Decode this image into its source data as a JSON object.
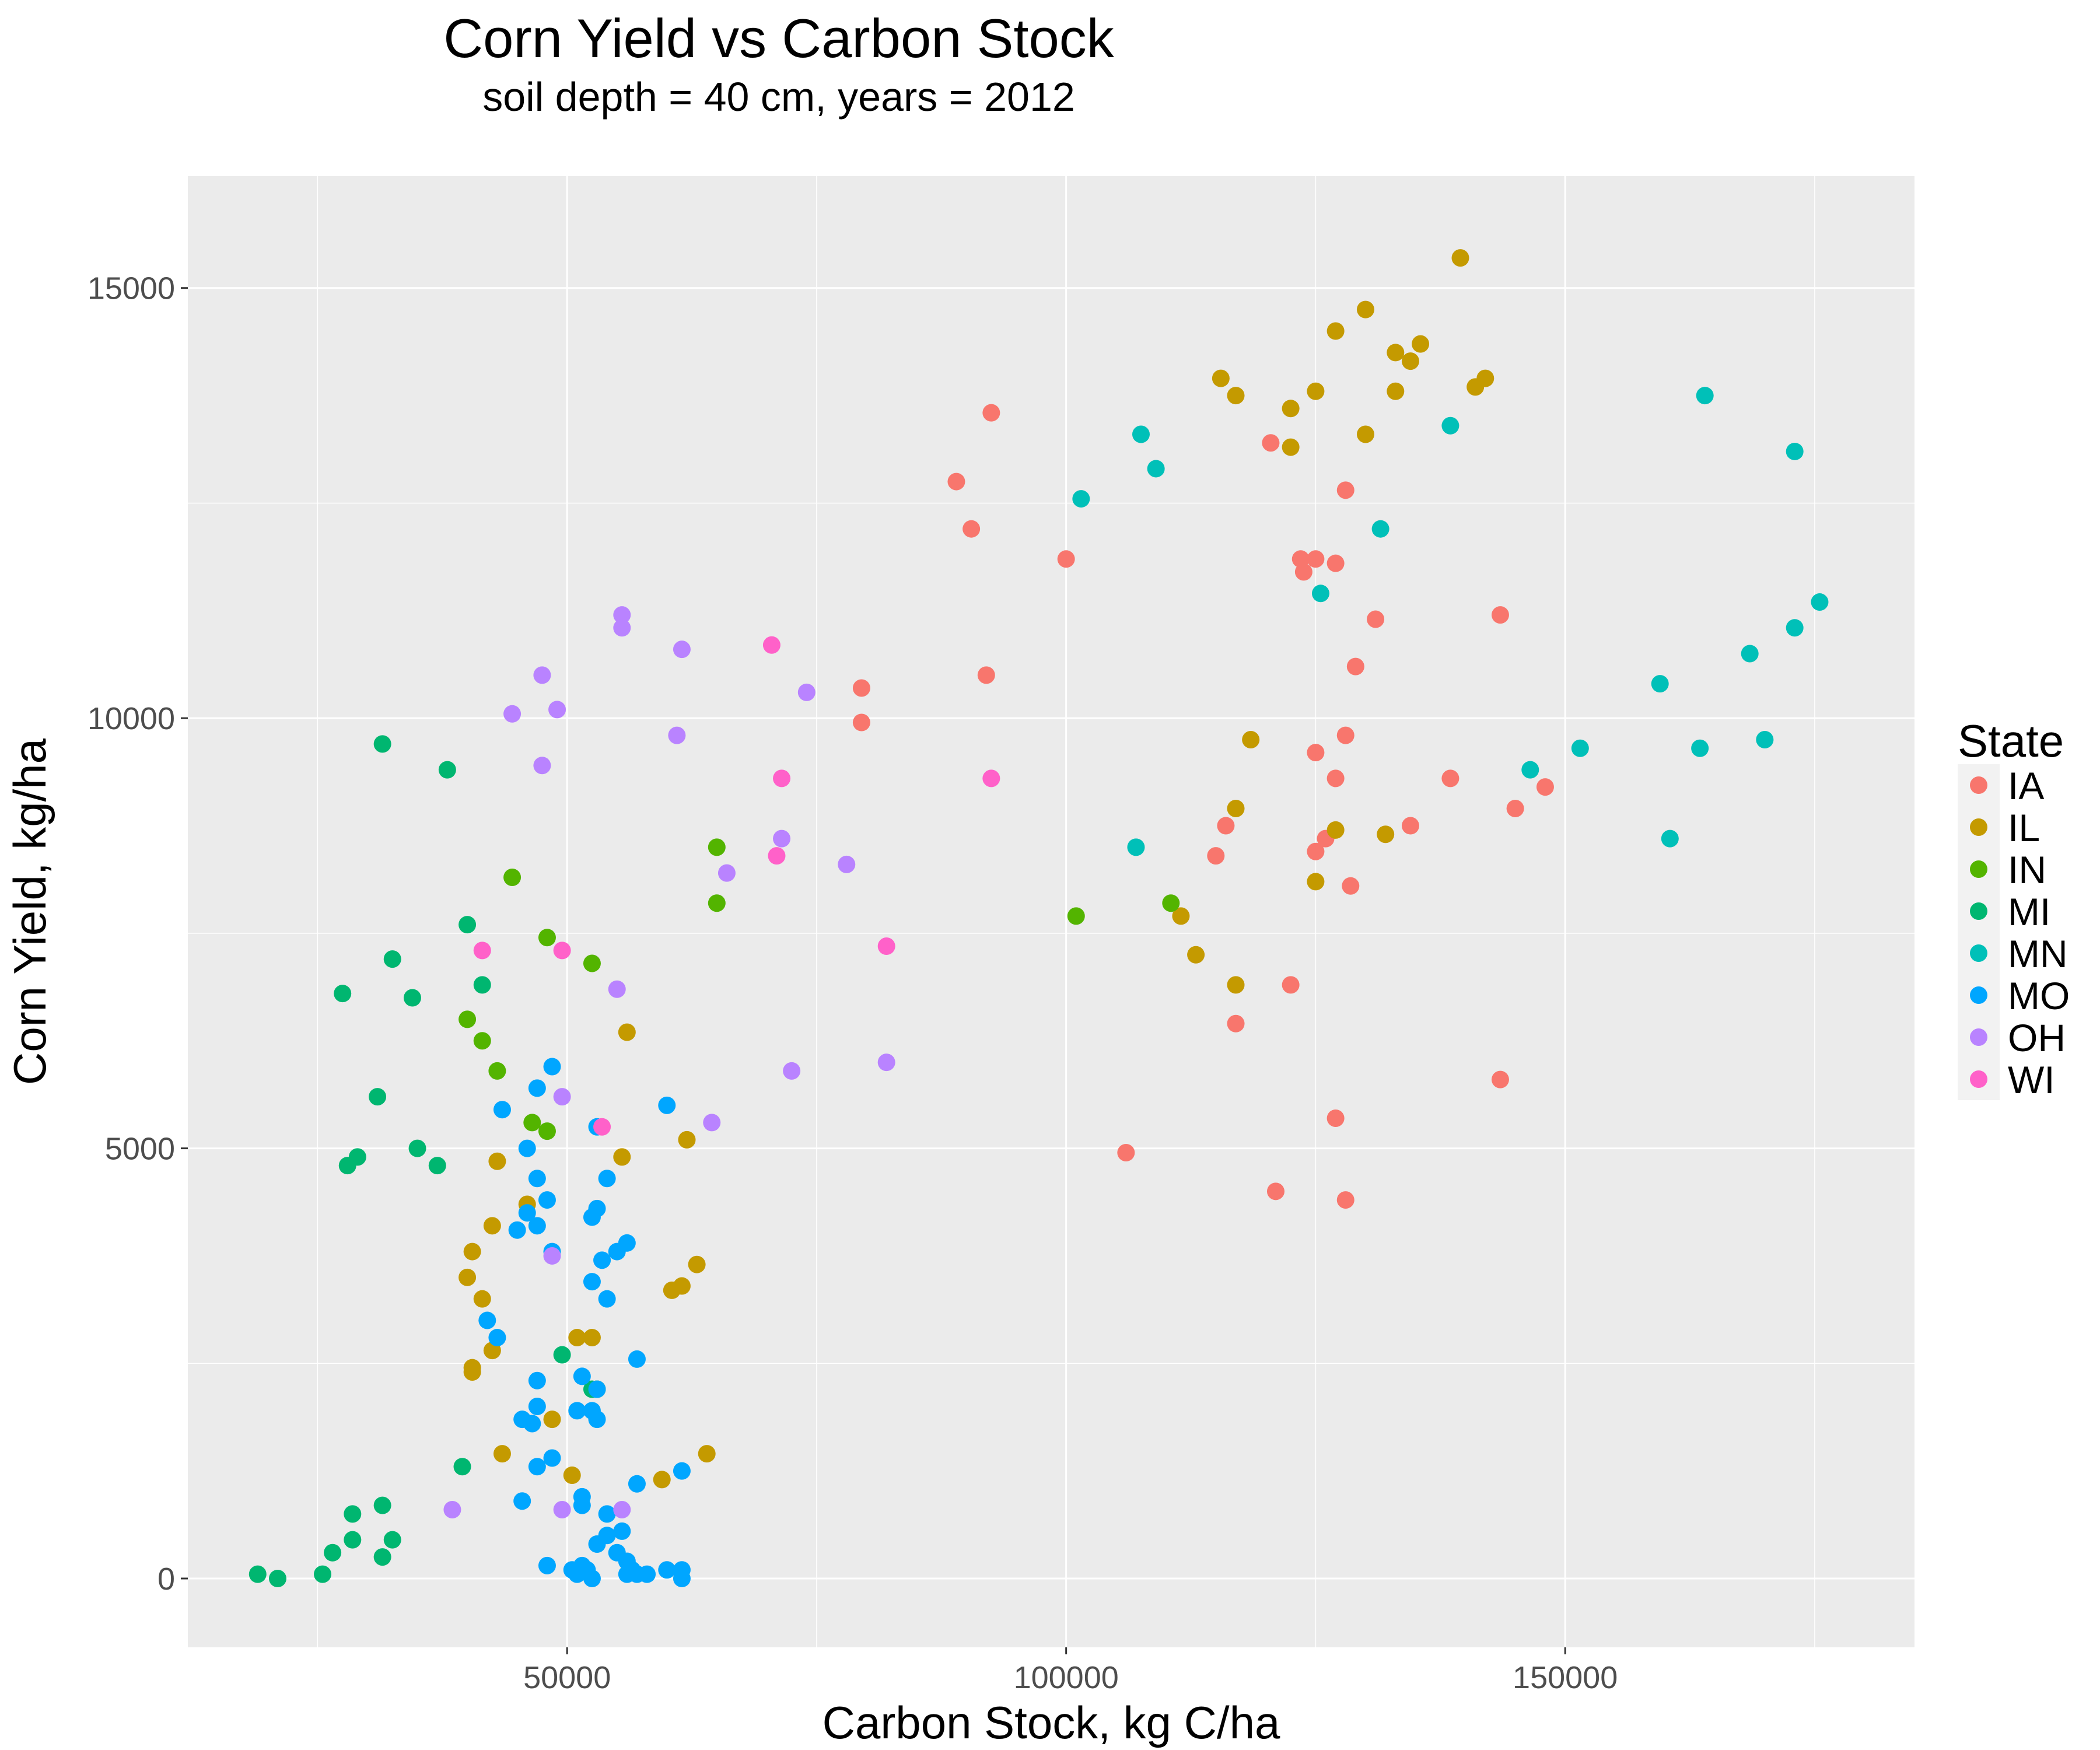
{
  "chart_data": {
    "type": "scatter",
    "title": "Corn Yield vs Carbon Stock",
    "subtitle": "soil depth = 40 cm, years = 2012",
    "xlabel": "Carbon Stock, kg C/ha",
    "ylabel": "Corn Yield, kg/ha",
    "xlim": [
      12000,
      185000
    ],
    "ylim": [
      -800,
      16300
    ],
    "xticks": [
      50000,
      100000,
      150000
    ],
    "xtick_labels": [
      "50000",
      "100000",
      "150000"
    ],
    "yticks": [
      0,
      5000,
      10000,
      15000
    ],
    "ytick_labels": [
      "0",
      "5000",
      "10000",
      "15000"
    ],
    "grid": true,
    "legend": {
      "title": "State",
      "position": "right"
    },
    "series": [
      {
        "name": "IA",
        "color": "#F8766D",
        "points": [
          [
            92500,
            13550
          ],
          [
            89000,
            12750
          ],
          [
            90500,
            12200
          ],
          [
            100000,
            11850
          ],
          [
            120500,
            13200
          ],
          [
            128000,
            12650
          ],
          [
            123500,
            11850
          ],
          [
            123800,
            11700
          ],
          [
            125000,
            11850
          ],
          [
            127000,
            11800
          ],
          [
            131000,
            11150
          ],
          [
            143500,
            11200
          ],
          [
            129000,
            10600
          ],
          [
            92000,
            10500
          ],
          [
            79500,
            10350
          ],
          [
            79500,
            9950
          ],
          [
            125000,
            9600
          ],
          [
            128000,
            9800
          ],
          [
            127000,
            9300
          ],
          [
            138500,
            9300
          ],
          [
            148000,
            9200
          ],
          [
            145000,
            8950
          ],
          [
            116000,
            8750
          ],
          [
            115000,
            8400
          ],
          [
            126000,
            8600
          ],
          [
            125000,
            8450
          ],
          [
            134500,
            8750
          ],
          [
            128500,
            8050
          ],
          [
            122500,
            6900
          ],
          [
            117000,
            6450
          ],
          [
            143500,
            5800
          ],
          [
            127000,
            5350
          ],
          [
            106000,
            4950
          ],
          [
            121000,
            4500
          ],
          [
            128000,
            4400
          ]
        ]
      },
      {
        "name": "IL",
        "color": "#C49A00",
        "points": [
          [
            139500,
            15350
          ],
          [
            130000,
            14750
          ],
          [
            127000,
            14500
          ],
          [
            133000,
            14250
          ],
          [
            134500,
            14150
          ],
          [
            135500,
            14350
          ],
          [
            115500,
            13950
          ],
          [
            117000,
            13750
          ],
          [
            122500,
            13600
          ],
          [
            125000,
            13800
          ],
          [
            133000,
            13800
          ],
          [
            141000,
            13850
          ],
          [
            142000,
            13950
          ],
          [
            130000,
            13300
          ],
          [
            122500,
            13150
          ],
          [
            118500,
            9750
          ],
          [
            117000,
            8950
          ],
          [
            127000,
            8700
          ],
          [
            132000,
            8650
          ],
          [
            125000,
            8100
          ],
          [
            111500,
            7700
          ],
          [
            113000,
            7250
          ],
          [
            117000,
            6900
          ],
          [
            56000,
            6350
          ],
          [
            62000,
            5100
          ],
          [
            55500,
            4900
          ],
          [
            43000,
            4850
          ],
          [
            46000,
            4350
          ],
          [
            42500,
            4100
          ],
          [
            40500,
            3800
          ],
          [
            40000,
            3500
          ],
          [
            41500,
            3250
          ],
          [
            63000,
            3650
          ],
          [
            60500,
            3350
          ],
          [
            61500,
            3400
          ],
          [
            42500,
            2650
          ],
          [
            51000,
            2800
          ],
          [
            52500,
            2800
          ],
          [
            40500,
            2450
          ],
          [
            40500,
            2400
          ],
          [
            48500,
            1850
          ],
          [
            43500,
            1450
          ],
          [
            50500,
            1200
          ],
          [
            59500,
            1150
          ],
          [
            64000,
            1450
          ]
        ]
      },
      {
        "name": "IN",
        "color": "#53B400",
        "points": [
          [
            65000,
            8500
          ],
          [
            65000,
            7850
          ],
          [
            110500,
            7850
          ],
          [
            101000,
            7700
          ],
          [
            44500,
            8150
          ],
          [
            48000,
            7450
          ],
          [
            52500,
            7150
          ],
          [
            40000,
            6500
          ],
          [
            41500,
            6250
          ],
          [
            43000,
            5900
          ],
          [
            46500,
            5300
          ],
          [
            48000,
            5200
          ],
          [
            53000,
            2200
          ]
        ]
      },
      {
        "name": "MI",
        "color": "#00B670",
        "points": [
          [
            31500,
            9700
          ],
          [
            38000,
            9400
          ],
          [
            40000,
            7600
          ],
          [
            32500,
            7200
          ],
          [
            41500,
            6900
          ],
          [
            27500,
            6800
          ],
          [
            34500,
            6750
          ],
          [
            31000,
            5600
          ],
          [
            35000,
            5000
          ],
          [
            29000,
            4900
          ],
          [
            28000,
            4800
          ],
          [
            37000,
            4800
          ],
          [
            49500,
            2600
          ],
          [
            52500,
            2200
          ],
          [
            39500,
            1300
          ],
          [
            31500,
            850
          ],
          [
            28500,
            750
          ],
          [
            28500,
            450
          ],
          [
            32500,
            450
          ],
          [
            31500,
            250
          ],
          [
            26500,
            300
          ],
          [
            19000,
            50
          ],
          [
            21000,
            0
          ],
          [
            25500,
            50
          ]
        ]
      },
      {
        "name": "MN",
        "color": "#00C0B8",
        "points": [
          [
            164000,
            13750
          ],
          [
            107500,
            13300
          ],
          [
            138500,
            13400
          ],
          [
            109000,
            12900
          ],
          [
            173000,
            13100
          ],
          [
            101500,
            12550
          ],
          [
            131500,
            12200
          ],
          [
            125500,
            11450
          ],
          [
            175500,
            11350
          ],
          [
            173000,
            11050
          ],
          [
            168500,
            10750
          ],
          [
            159500,
            10400
          ],
          [
            146500,
            9400
          ],
          [
            151500,
            9650
          ],
          [
            163500,
            9650
          ],
          [
            170000,
            9750
          ],
          [
            160500,
            8600
          ],
          [
            107000,
            8500
          ]
        ]
      },
      {
        "name": "MO",
        "color": "#00A6FF",
        "points": [
          [
            48500,
            5950
          ],
          [
            47000,
            5700
          ],
          [
            60000,
            5500
          ],
          [
            43500,
            5450
          ],
          [
            53000,
            5250
          ],
          [
            46000,
            5000
          ],
          [
            47000,
            4650
          ],
          [
            54000,
            4650
          ],
          [
            48000,
            4400
          ],
          [
            53000,
            4300
          ],
          [
            46000,
            4250
          ],
          [
            52500,
            4200
          ],
          [
            47000,
            4100
          ],
          [
            45000,
            4050
          ],
          [
            56000,
            3900
          ],
          [
            55000,
            3800
          ],
          [
            48500,
            3800
          ],
          [
            53500,
            3700
          ],
          [
            52500,
            3450
          ],
          [
            54000,
            3250
          ],
          [
            42000,
            3000
          ],
          [
            43000,
            2800
          ],
          [
            57000,
            2550
          ],
          [
            51500,
            2350
          ],
          [
            47000,
            2300
          ],
          [
            53000,
            2200
          ],
          [
            47000,
            2000
          ],
          [
            51000,
            1950
          ],
          [
            52500,
            1950
          ],
          [
            45500,
            1850
          ],
          [
            53000,
            1850
          ],
          [
            46500,
            1800
          ],
          [
            48500,
            1400
          ],
          [
            47000,
            1300
          ],
          [
            61500,
            1250
          ],
          [
            57000,
            1100
          ],
          [
            45500,
            900
          ],
          [
            51500,
            950
          ],
          [
            51500,
            850
          ],
          [
            54000,
            750
          ],
          [
            55500,
            550
          ],
          [
            54000,
            500
          ],
          [
            53000,
            400
          ],
          [
            55000,
            300
          ],
          [
            48000,
            150
          ],
          [
            50500,
            100
          ],
          [
            51500,
            150
          ],
          [
            52000,
            100
          ],
          [
            51000,
            50
          ],
          [
            52500,
            0
          ],
          [
            56000,
            200
          ],
          [
            56500,
            100
          ],
          [
            57000,
            50
          ],
          [
            58000,
            50
          ],
          [
            60000,
            100
          ],
          [
            61500,
            100
          ],
          [
            61500,
            0
          ],
          [
            56000,
            50
          ]
        ]
      },
      {
        "name": "OH",
        "color": "#B983FF",
        "points": [
          [
            55500,
            11200
          ],
          [
            55500,
            11050
          ],
          [
            61500,
            10800
          ],
          [
            47500,
            10500
          ],
          [
            44500,
            10050
          ],
          [
            49000,
            10100
          ],
          [
            74000,
            10300
          ],
          [
            61000,
            9800
          ],
          [
            47500,
            9450
          ],
          [
            71500,
            8600
          ],
          [
            78000,
            8300
          ],
          [
            66000,
            8200
          ],
          [
            55000,
            6850
          ],
          [
            72500,
            5900
          ],
          [
            82000,
            6000
          ],
          [
            49500,
            5600
          ],
          [
            64500,
            5300
          ],
          [
            48500,
            3750
          ],
          [
            38500,
            800
          ],
          [
            49500,
            800
          ],
          [
            55500,
            800
          ]
        ]
      },
      {
        "name": "WI",
        "color": "#FF61C9",
        "points": [
          [
            70500,
            10850
          ],
          [
            71500,
            9300
          ],
          [
            92500,
            9300
          ],
          [
            71000,
            8400
          ],
          [
            82000,
            7350
          ],
          [
            41500,
            7300
          ],
          [
            49500,
            7300
          ],
          [
            53500,
            5250
          ]
        ]
      }
    ]
  }
}
